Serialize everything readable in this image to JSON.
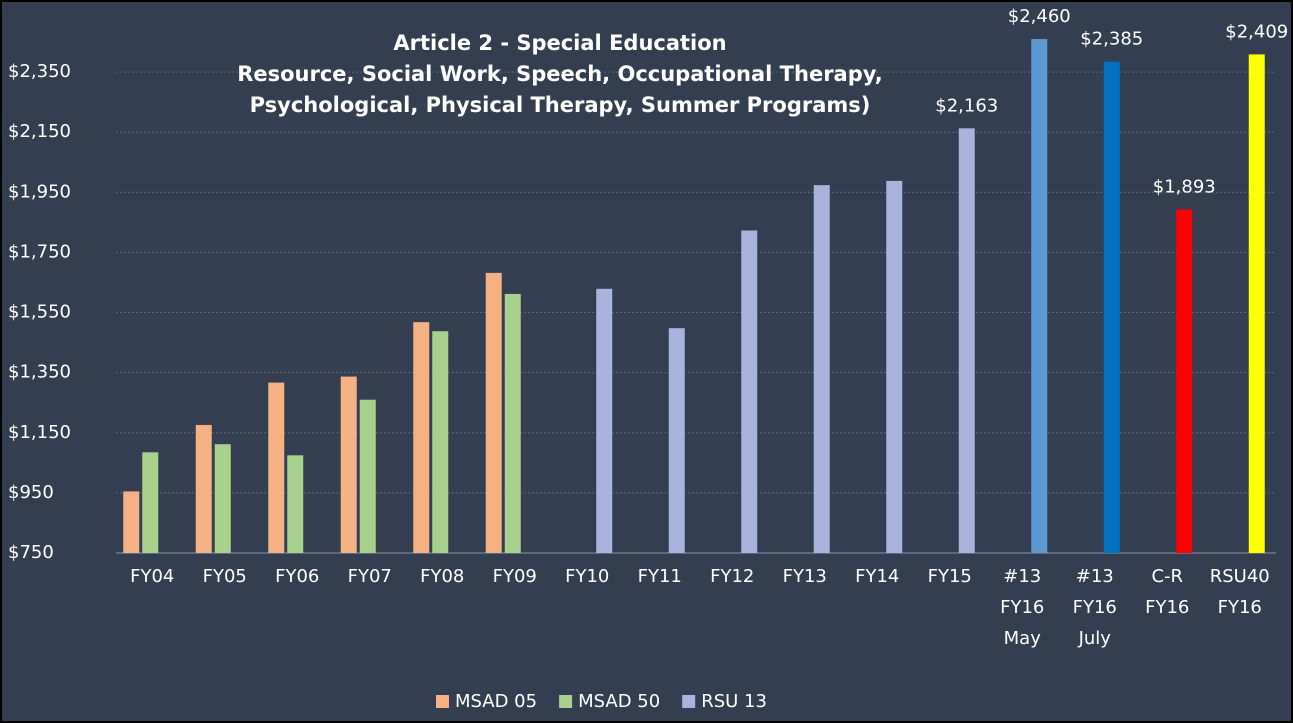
{
  "chart_data": {
    "type": "bar",
    "title": [
      "Article 2 - Special Education",
      "Resource, Social Work, Speech, Occupational Therapy,",
      "Psychological, Physical Therapy, Summer Programs)"
    ],
    "categories": [
      "FY04",
      "FY05",
      "FY06",
      "FY07",
      "FY08",
      "FY09",
      "FY10",
      "FY11",
      "FY12",
      "FY13",
      "FY14",
      "FY15",
      "#13 FY16 May",
      "#13 FY16 July",
      "C-R FY16",
      "RSU40 FY16"
    ],
    "series": [
      {
        "name": "MSAD 05",
        "color": "#f4b183",
        "values": [
          955,
          1176,
          1317,
          1337,
          1518,
          1682,
          null,
          null,
          null,
          null,
          null,
          null,
          null,
          null,
          null,
          null
        ]
      },
      {
        "name": "MSAD 50",
        "color": "#a9d18e",
        "values": [
          1085,
          1112,
          1075,
          1260,
          1488,
          1612,
          null,
          null,
          null,
          null,
          null,
          null,
          null,
          null,
          null,
          null
        ]
      },
      {
        "name": "RSU 13",
        "color": "#a9b4dc",
        "values": [
          null,
          null,
          null,
          null,
          null,
          null,
          1629,
          1498,
          1823,
          1974,
          1988,
          2163,
          2460,
          2385,
          1893,
          2409
        ],
        "colors": [
          null,
          null,
          null,
          null,
          null,
          null,
          "#a9b4dc",
          "#a9b4dc",
          "#a9b4dc",
          "#a9b4dc",
          "#a9b4dc",
          "#a9b4dc",
          "#5b9bd5",
          "#0070c0",
          "#ff0000",
          "#ffff00"
        ],
        "value_labels": [
          null,
          null,
          null,
          null,
          null,
          null,
          null,
          null,
          null,
          null,
          null,
          "$2,163",
          "$2,460",
          "$2,385",
          "$1,893",
          "$2,409"
        ]
      }
    ],
    "ylim": [
      750,
      2550
    ],
    "yticks": [
      {
        "value": 750,
        "label": "$750"
      },
      {
        "value": 950,
        "label": "$950"
      },
      {
        "value": 1150,
        "label": "$1,150"
      },
      {
        "value": 1350,
        "label": "$1,350"
      },
      {
        "value": 1550,
        "label": "$1,550"
      },
      {
        "value": 1750,
        "label": "$1,750"
      },
      {
        "value": 1950,
        "label": "$1,950"
      },
      {
        "value": 2150,
        "label": "$2,150"
      },
      {
        "value": 2350,
        "label": "$2,350"
      }
    ],
    "grid": true,
    "legend": "bottom"
  }
}
